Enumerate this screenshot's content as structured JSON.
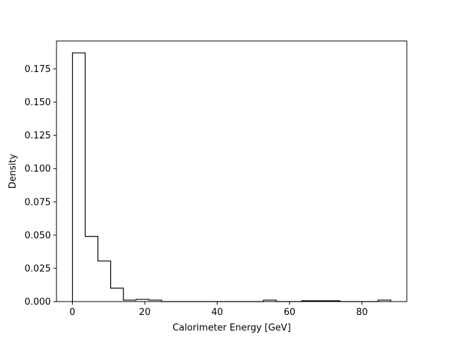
{
  "chart_data": {
    "type": "histogram",
    "style": "step",
    "title": "",
    "xlabel": "Calorimeter Energy [GeV]",
    "ylabel": "Density",
    "xlim": [
      -4.4,
      92.4
    ],
    "ylim": [
      0,
      0.196
    ],
    "xticks": [
      0,
      20,
      40,
      60,
      80
    ],
    "yticks": [
      0.0,
      0.025,
      0.05,
      0.075,
      0.1,
      0.125,
      0.15,
      0.175
    ],
    "xtick_labels": [
      "0",
      "20",
      "40",
      "60",
      "80"
    ],
    "ytick_labels": [
      "0.000",
      "0.025",
      "0.050",
      "0.075",
      "0.100",
      "0.125",
      "0.150",
      "0.175"
    ],
    "bin_edges": [
      0.0,
      3.52,
      7.04,
      10.56,
      14.08,
      17.6,
      21.12,
      24.64,
      28.16,
      31.68,
      35.2,
      38.72,
      42.24,
      45.76,
      49.28,
      52.8,
      56.32,
      59.84,
      63.36,
      66.88,
      70.4,
      73.92,
      77.44,
      80.96,
      84.48,
      88.0
    ],
    "values": [
      0.187,
      0.049,
      0.0305,
      0.0101,
      0.0011,
      0.0017,
      0.0011,
      0.0,
      0.0,
      0.0,
      0.0,
      0.0,
      0.0,
      0.0,
      0.0,
      0.0011,
      0.0,
      0.0,
      0.0006,
      0.0006,
      0.0006,
      0.0,
      0.0,
      0.0,
      0.0011
    ],
    "color": "#000000",
    "grid": false,
    "legend": false
  }
}
